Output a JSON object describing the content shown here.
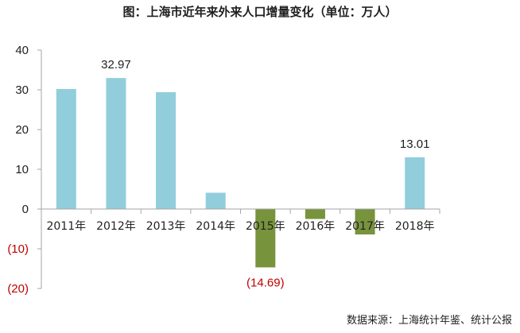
{
  "title": "图：上海市近年来外来人口增量变化（单位：万人）",
  "source": "数据来源：上海统计年鉴、统计公报",
  "colors": {
    "positive_bar": "#92cddc",
    "negative_bar": "#77933c",
    "negative_label": "#c00000",
    "axis": "#a6a6a6",
    "text": "#1f1f1f"
  },
  "chart_data": {
    "type": "bar",
    "title": "图：上海市近年来外来人口增量变化（单位：万人）",
    "xlabel": "",
    "ylabel": "",
    "ylim": [
      -20,
      40
    ],
    "yticks": [
      40,
      30,
      20,
      10,
      0,
      -10,
      -20
    ],
    "ytick_labels": [
      "40",
      "30",
      "20",
      "10",
      "0",
      "(10)",
      "(20)"
    ],
    "grid": false,
    "categories": [
      "2011年",
      "2012年",
      "2013年",
      "2014年",
      "2015年",
      "2016年",
      "2017年",
      "2018年"
    ],
    "values": [
      30.2,
      32.97,
      29.4,
      4.1,
      -14.69,
      -2.5,
      -6.4,
      13.01
    ],
    "data_labels": [
      {
        "category": "2012年",
        "text": "32.97"
      },
      {
        "category": "2015年",
        "text": "(14.69)"
      },
      {
        "category": "2018年",
        "text": "13.01"
      }
    ]
  }
}
